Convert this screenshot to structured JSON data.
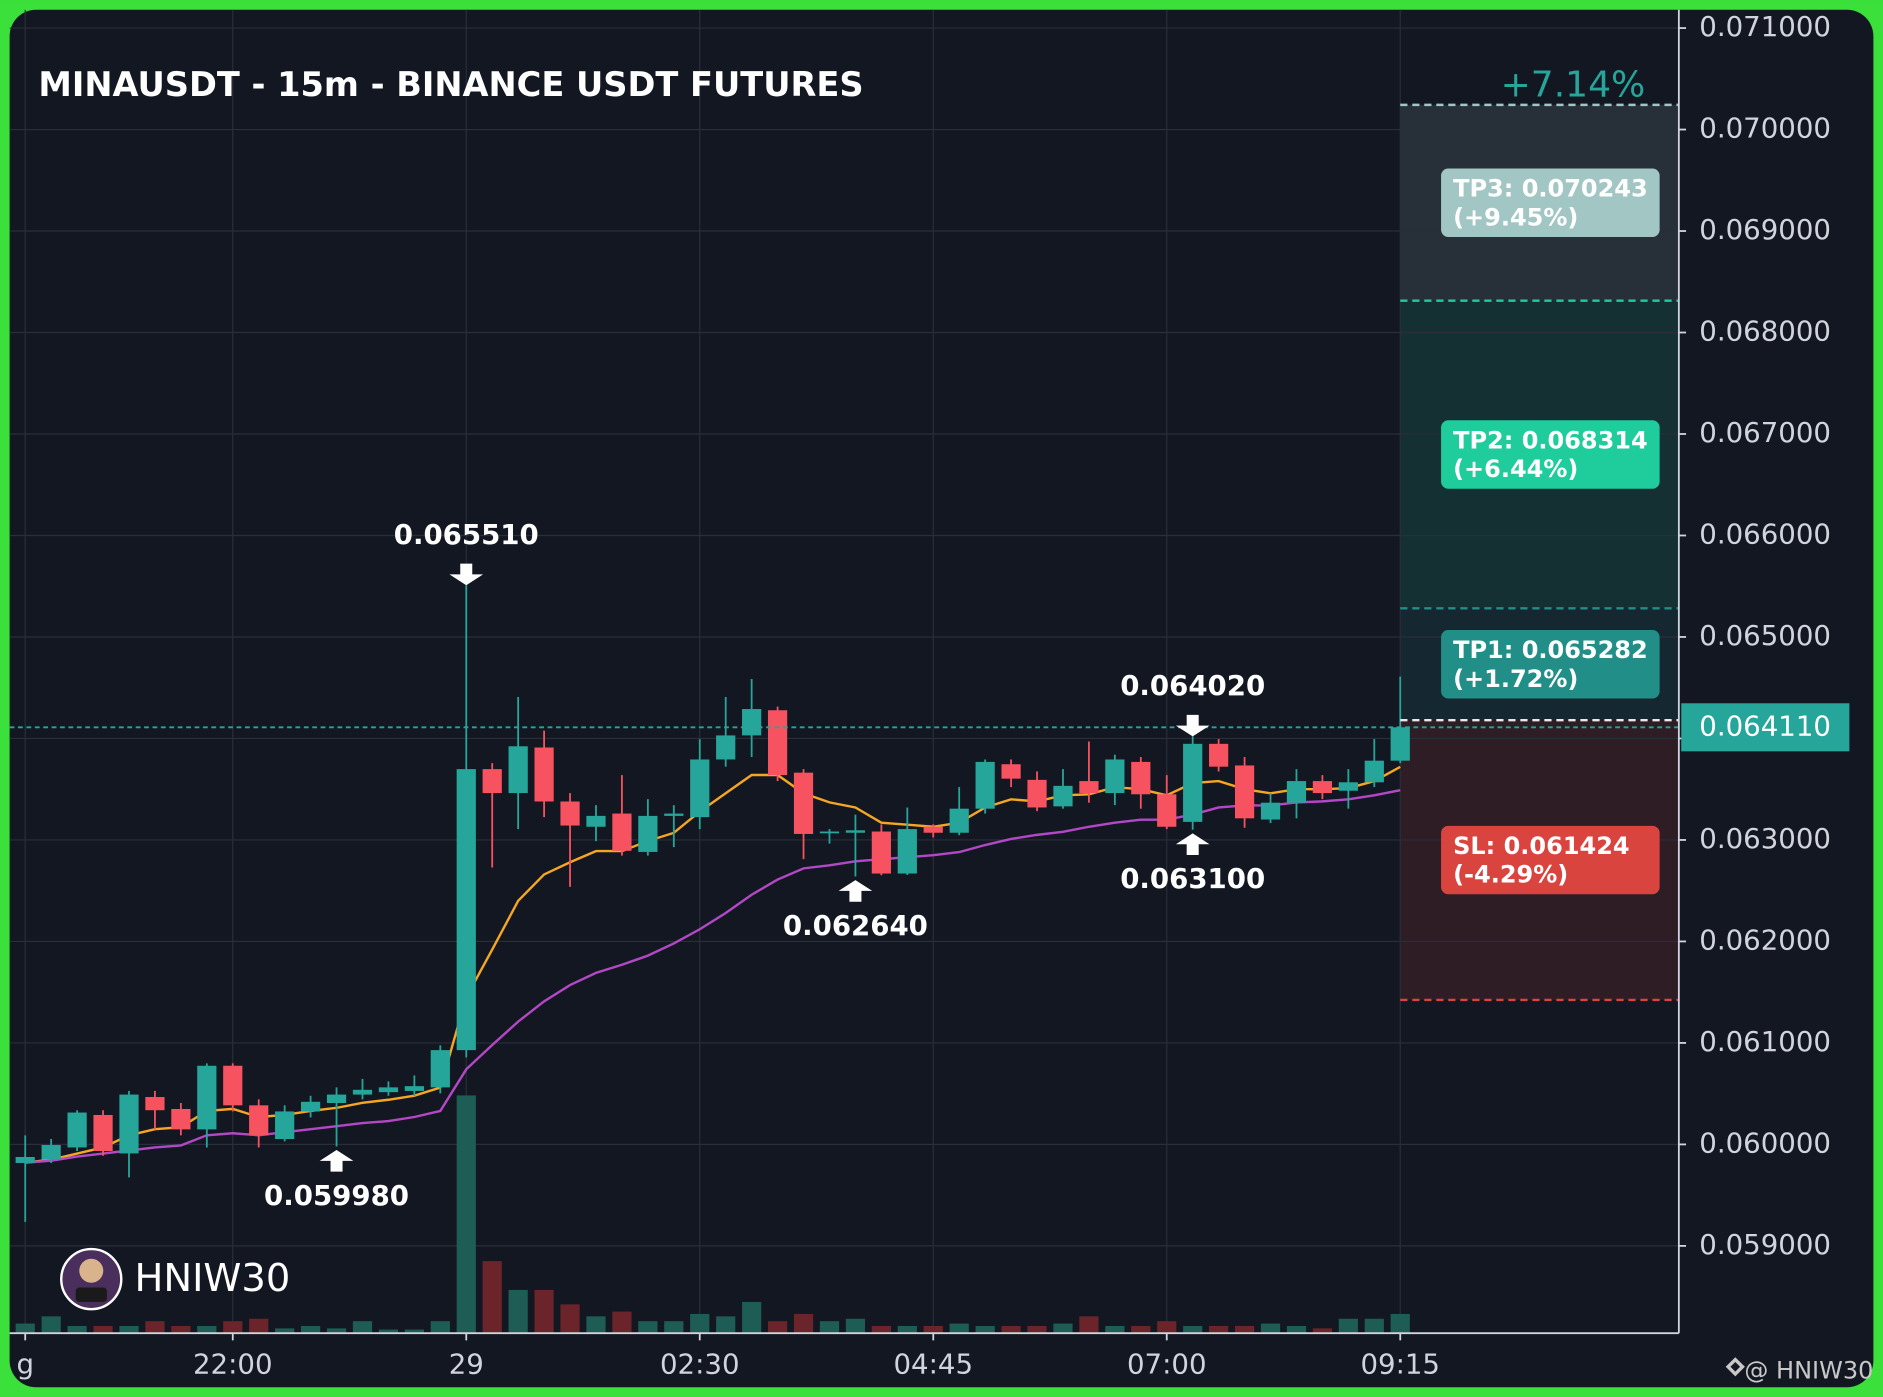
{
  "chart_data": {
    "type": "candlestick",
    "title": "MINAUSDT - 15m - BINANCE USDT FUTURES",
    "change_label": "+7.14%",
    "categories": [
      "g",
      null,
      null,
      null,
      null,
      null,
      null,
      null,
      "22:00",
      null,
      null,
      null,
      null,
      null,
      null,
      null,
      null,
      "29",
      null,
      null,
      null,
      null,
      null,
      null,
      null,
      null,
      "02:30",
      null,
      null,
      null,
      null,
      null,
      null,
      null,
      null,
      "04:45",
      null,
      null,
      null,
      null,
      null,
      null,
      null,
      null,
      "07:00",
      null,
      null,
      null,
      null,
      null,
      null,
      null,
      null,
      "09:15"
    ],
    "open": [
      0.059817,
      0.059852,
      0.05997,
      0.06029,
      0.059911,
      0.060467,
      0.060349,
      0.060148,
      0.060775,
      0.060385,
      0.060053,
      0.060325,
      0.060408,
      0.060491,
      0.060515,
      0.060527,
      0.060562,
      0.060929,
      0.063698,
      0.063462,
      0.063911,
      0.063379,
      0.06313,
      0.06326,
      0.062882,
      0.063237,
      0.063225,
      0.063793,
      0.06403,
      0.064278,
      0.063663,
      0.063071,
      0.063071,
      0.063083,
      0.062669,
      0.06313,
      0.063071,
      0.063308,
      0.063746,
      0.063592,
      0.063331,
      0.06358,
      0.063462,
      0.063769,
      0.06345,
      0.063178,
      0.063947,
      0.063734,
      0.063201,
      0.063367,
      0.06358,
      0.063485,
      0.063568,
      0.063781
    ],
    "high": [
      0.060089,
      0.060053,
      0.060337,
      0.060337,
      0.060527,
      0.060527,
      0.060408,
      0.060799,
      0.060799,
      0.060444,
      0.060385,
      0.060479,
      0.060562,
      0.060645,
      0.060621,
      0.06068,
      0.060976,
      0.06551,
      0.063757,
      0.064408,
      0.064077,
      0.063462,
      0.063343,
      0.063639,
      0.063402,
      0.063343,
      0.063994,
      0.064408,
      0.064586,
      0.064314,
      0.063698,
      0.063107,
      0.063249,
      0.063154,
      0.06332,
      0.063154,
      0.063521,
      0.063793,
      0.063793,
      0.063675,
      0.063698,
      0.06397,
      0.06384,
      0.063817,
      0.063639,
      0.06402,
      0.063994,
      0.063817,
      0.063462,
      0.063698,
      0.063639,
      0.063698,
      0.063994,
      0.064609
    ],
    "low": [
      0.059237,
      0.059817,
      0.059935,
      0.059888,
      0.059675,
      0.060148,
      0.060089,
      0.05997,
      0.060325,
      0.05997,
      0.06003,
      0.060266,
      0.05998,
      0.060444,
      0.060479,
      0.060479,
      0.060503,
      0.060858,
      0.062728,
      0.063107,
      0.063225,
      0.062538,
      0.062988,
      0.062846,
      0.062846,
      0.062929,
      0.063107,
      0.063722,
      0.063817,
      0.06358,
      0.062811,
      0.062964,
      0.06264,
      0.062652,
      0.062655,
      0.063024,
      0.063047,
      0.06326,
      0.063521,
      0.063284,
      0.063308,
      0.063367,
      0.063343,
      0.063308,
      0.063107,
      0.0631,
      0.063675,
      0.06312,
      0.063166,
      0.063213,
      0.063402,
      0.063308,
      0.063521,
      0.063757
    ],
    "close": [
      0.059876,
      0.059994,
      0.060314,
      0.059935,
      0.060491,
      0.060337,
      0.060148,
      0.060775,
      0.060385,
      0.060089,
      0.060325,
      0.06042,
      0.060491,
      0.060538,
      0.060562,
      0.060574,
      0.060929,
      0.063698,
      0.063462,
      0.063923,
      0.063379,
      0.063142,
      0.063237,
      0.062893,
      0.063237,
      0.06326,
      0.063793,
      0.06403,
      0.06429,
      0.063639,
      0.063059,
      0.063083,
      0.063095,
      0.062669,
      0.063107,
      0.063071,
      0.063308,
      0.063769,
      0.063604,
      0.06332,
      0.063533,
      0.063462,
      0.063793,
      0.06345,
      0.06313,
      0.063947,
      0.063722,
      0.063213,
      0.063367,
      0.06358,
      0.063462,
      0.063568,
      0.063781,
      0.06411
    ],
    "volume": [
      8,
      14,
      6,
      6,
      6,
      10,
      6,
      6,
      10,
      12,
      4,
      6,
      4,
      10,
      3,
      3,
      10,
      198,
      60,
      36,
      36,
      24,
      14,
      18,
      10,
      10,
      16,
      14,
      26,
      10,
      16,
      10,
      12,
      6,
      6,
      6,
      8,
      6,
      6,
      6,
      8,
      14,
      6,
      6,
      10,
      6,
      6,
      6,
      8,
      6,
      4,
      12,
      12,
      16
    ],
    "up_color": "#26a69a",
    "down_color": "#f7525f",
    "volume_up_color": "#1e5c56",
    "volume_down_color": "#6b2429",
    "moving_averages": [
      {
        "color": "#f5a623",
        "values": [
          0.05982,
          0.05985,
          0.05991,
          0.05997,
          0.06009,
          0.06015,
          0.06017,
          0.06033,
          0.06035,
          0.06027,
          0.06029,
          0.06033,
          0.06036,
          0.06041,
          0.06044,
          0.06048,
          0.06056,
          0.06145,
          0.06192,
          0.0624,
          0.06266,
          0.06278,
          0.06289,
          0.06289,
          0.06299,
          0.06307,
          0.06328,
          0.06346,
          0.06364,
          0.06364,
          0.06346,
          0.06337,
          0.06332,
          0.06317,
          0.06315,
          0.06313,
          0.06317,
          0.06332,
          0.0634,
          0.06338,
          0.06344,
          0.06345,
          0.06352,
          0.0635,
          0.06344,
          0.06356,
          0.06358,
          0.0635,
          0.06346,
          0.0635,
          0.0635,
          0.06351,
          0.06358,
          0.06372
        ]
      },
      {
        "color": "#b348c6",
        "values": [
          0.05982,
          0.05984,
          0.05988,
          0.05991,
          0.05994,
          0.05997,
          0.05999,
          0.06009,
          0.06011,
          0.06009,
          0.06012,
          0.06015,
          0.06018,
          0.06021,
          0.06023,
          0.06027,
          0.06033,
          0.06074,
          0.06098,
          0.06121,
          0.06141,
          0.06157,
          0.06169,
          0.06177,
          0.06186,
          0.06198,
          0.06212,
          0.06228,
          0.06246,
          0.06261,
          0.06272,
          0.06275,
          0.06279,
          0.06281,
          0.06283,
          0.06285,
          0.06288,
          0.06295,
          0.06301,
          0.06305,
          0.06308,
          0.06313,
          0.06317,
          0.0632,
          0.0632,
          0.06325,
          0.06332,
          0.06334,
          0.06334,
          0.06337,
          0.06338,
          0.0634,
          0.06344,
          0.06349
        ]
      }
    ],
    "ylim": [
      0.05814,
      0.07118
    ],
    "yticks": [
      {
        "value": 0.059,
        "label": "0.059000"
      },
      {
        "value": 0.06,
        "label": "0.060000"
      },
      {
        "value": 0.061,
        "label": "0.061000"
      },
      {
        "value": 0.062,
        "label": "0.062000"
      },
      {
        "value": 0.063,
        "label": "0.063000"
      },
      {
        "value": 0.064,
        "label": "0.064000"
      },
      {
        "value": 0.065,
        "label": "0.065000"
      },
      {
        "value": 0.066,
        "label": "0.066000"
      },
      {
        "value": 0.067,
        "label": "0.067000"
      },
      {
        "value": 0.068,
        "label": "0.068000"
      },
      {
        "value": 0.069,
        "label": "0.069000"
      },
      {
        "value": 0.07,
        "label": "0.070000"
      },
      {
        "value": 0.071,
        "label": "0.071000"
      }
    ],
    "grid": true,
    "last_price": {
      "value": 0.06411,
      "label": "0.064110",
      "color": "#26a69a"
    },
    "entry": 0.06418,
    "levels": [
      {
        "label": "TP3: 0.070243",
        "change": "(+9.45%)",
        "value": 0.070243,
        "color": "#a2c6c4"
      },
      {
        "label": "TP2: 0.068314",
        "change": "(+6.44%)",
        "value": 0.068314,
        "color": "#1fcc9b"
      },
      {
        "label": "TP1: 0.065282",
        "change": "(+1.72%)",
        "value": 0.065282,
        "color": "#218f87"
      },
      {
        "label": "SL: 0.061424",
        "change": "(-4.29%)",
        "value": 0.061424,
        "color": "#d9443f"
      }
    ],
    "extremes": [
      {
        "kind": "high",
        "value": 0.06551,
        "label": "0.065510"
      },
      {
        "kind": "low",
        "value": 0.05998,
        "label": "0.059980"
      },
      {
        "kind": "low",
        "value": 0.06264,
        "label": "0.062640"
      },
      {
        "kind": "high",
        "value": 0.06402,
        "label": "0.064020"
      },
      {
        "kind": "low",
        "value": 0.0631,
        "label": "0.063100"
      }
    ],
    "watermark": "HNIW30",
    "credit": "@ HNIW30"
  }
}
